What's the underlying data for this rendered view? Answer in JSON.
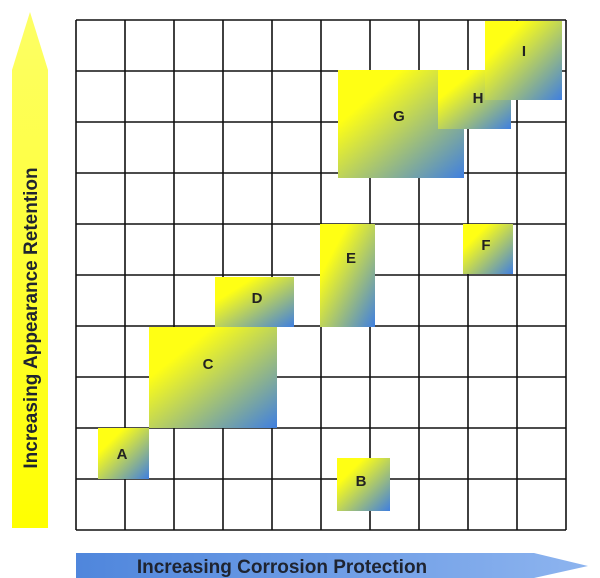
{
  "diagram": {
    "x_axis_label": "Increasing Corrosion Protection",
    "y_axis_label": "Increasing Appearance Retention",
    "grid": {
      "columns": 10,
      "rows": 10
    },
    "colors": {
      "gradient_start": "#ffff14",
      "gradient_end": "#3f7fe0",
      "y_arrow_start": "#fdff66",
      "y_arrow_end": "#ffff00",
      "x_arrow_start": "#4f86dc",
      "x_arrow_end": "#8db4ef",
      "grid_line": "#111111"
    },
    "boxes": [
      {
        "id": "A",
        "label": "A"
      },
      {
        "id": "B",
        "label": "B"
      },
      {
        "id": "C",
        "label": "C"
      },
      {
        "id": "D",
        "label": "D"
      },
      {
        "id": "E",
        "label": "E"
      },
      {
        "id": "F",
        "label": "F"
      },
      {
        "id": "G",
        "label": "G"
      },
      {
        "id": "H",
        "label": "H"
      },
      {
        "id": "I",
        "label": "I"
      }
    ]
  }
}
